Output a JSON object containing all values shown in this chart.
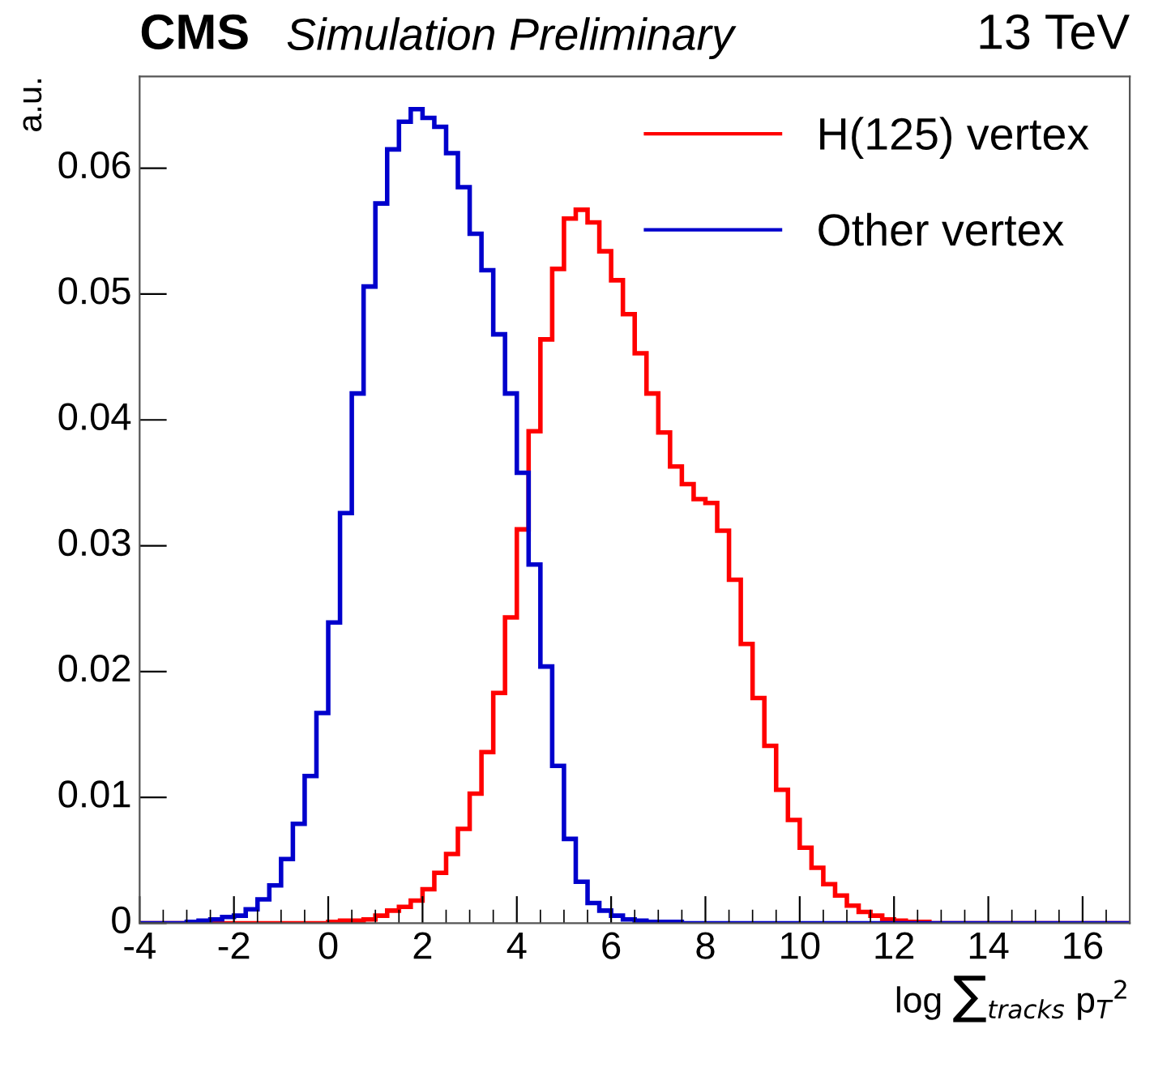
{
  "chart_data": {
    "type": "histogram",
    "title": "CMS",
    "subtitle": "Simulation Preliminary",
    "annotations": [
      "13 TeV"
    ],
    "xlabel": "log ∑$_{tracks}$ p$_{T}$$^{2}$",
    "ylabel": "a.u.",
    "bins": [
      -4,
      -3.75,
      -3.5,
      -3.25,
      -3,
      -2.75,
      -2.5,
      -2.25,
      -2,
      -1.75,
      -1.5,
      -1.25,
      -1,
      -0.75,
      -0.5,
      -0.25,
      0,
      0.25,
      0.5,
      0.75,
      1,
      1.25,
      1.5,
      1.75,
      2,
      2.25,
      2.5,
      2.75,
      3,
      3.25,
      3.5,
      3.75,
      4,
      4.25,
      4.5,
      4.75,
      5,
      5.25,
      5.5,
      5.75,
      6,
      6.25,
      6.5,
      6.75,
      7,
      7.25,
      7.5,
      7.75,
      8,
      8.25,
      8.5,
      8.75,
      9,
      9.25,
      9.5,
      9.75,
      10,
      10.25,
      10.5,
      10.75,
      11,
      11.25,
      11.5,
      11.75,
      12,
      12.25,
      12.5,
      12.75,
      13,
      13.25,
      13.5,
      13.75,
      14,
      14.25,
      14.5,
      14.75,
      15,
      15.25,
      15.5,
      15.75,
      16,
      16.25,
      16.5,
      16.75,
      17
    ],
    "series": [
      {
        "name": "H(125) vertex",
        "color": "#ff0000",
        "values": [
          0,
          0,
          0,
          0,
          0,
          0,
          0,
          0,
          0,
          0,
          0,
          0,
          0,
          0,
          0,
          0,
          0.0001,
          0.0002,
          0.0002,
          0.0003,
          0.0006,
          0.001,
          0.0013,
          0.0018,
          0.0027,
          0.004,
          0.0055,
          0.0075,
          0.0103,
          0.0136,
          0.0183,
          0.0243,
          0.0313,
          0.0391,
          0.0464,
          0.052,
          0.056,
          0.0567,
          0.0557,
          0.0534,
          0.0511,
          0.0484,
          0.0453,
          0.0421,
          0.039,
          0.0363,
          0.0349,
          0.0337,
          0.0334,
          0.0312,
          0.0273,
          0.0222,
          0.0179,
          0.0141,
          0.0106,
          0.0082,
          0.006,
          0.0044,
          0.0031,
          0.0022,
          0.0014,
          0.0009,
          0.0006,
          0.0003,
          0.0002,
          0.0001,
          0.0001,
          0,
          0,
          0,
          0,
          0,
          0,
          0,
          0,
          0,
          0,
          0,
          0,
          0,
          0,
          0,
          0,
          0
        ]
      },
      {
        "name": "Other vertex",
        "color": "#0000cc",
        "values": [
          0,
          0,
          0,
          0,
          0.0001,
          0.0002,
          0.0003,
          0.0005,
          0.0006,
          0.0011,
          0.0019,
          0.003,
          0.0051,
          0.0079,
          0.0117,
          0.0167,
          0.0239,
          0.0326,
          0.0421,
          0.0506,
          0.0572,
          0.0615,
          0.0637,
          0.0647,
          0.064,
          0.0633,
          0.0612,
          0.0585,
          0.0548,
          0.0519,
          0.0468,
          0.0421,
          0.0358,
          0.0285,
          0.0204,
          0.0125,
          0.0067,
          0.0033,
          0.0016,
          0.001,
          0.0006,
          0.0003,
          0.0002,
          0.0001,
          0.0001,
          0.0001,
          0,
          0,
          0,
          0,
          0,
          0,
          0,
          0,
          0,
          0,
          0,
          0,
          0,
          0,
          0,
          0,
          0,
          0,
          0,
          0,
          0,
          0,
          0,
          0,
          0,
          0,
          0,
          0,
          0,
          0,
          0,
          0,
          0,
          0,
          0,
          0,
          0,
          0
        ]
      }
    ],
    "xlim": [
      -4,
      17
    ],
    "xticks": [
      -4,
      -2,
      0,
      2,
      4,
      6,
      8,
      10,
      12,
      14,
      16
    ],
    "ylim": [
      0,
      0.0673
    ],
    "yticks": [
      0,
      0.01,
      0.02,
      0.03,
      0.04,
      0.05,
      0.06
    ],
    "legend": "top right",
    "grid": false
  }
}
